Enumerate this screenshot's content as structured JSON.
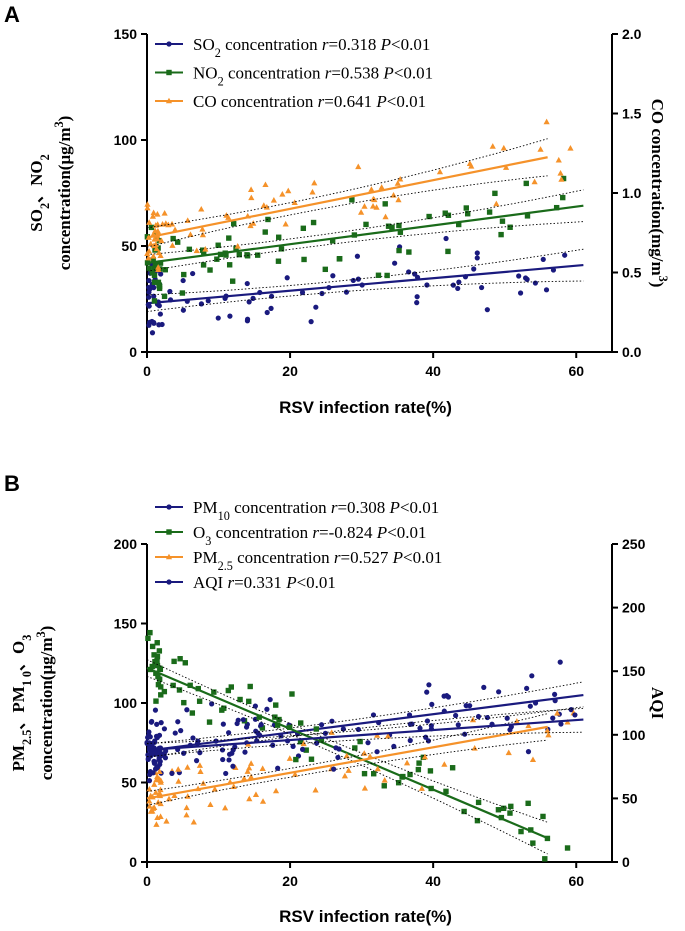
{
  "colors": {
    "navy": "#1a1a7e",
    "green": "#1a6b1a",
    "orange": "#f5922a",
    "axis": "#000000"
  },
  "chart_data": [
    {
      "panel": "A",
      "type": "scatter",
      "xlabel": "RSV infection rate(%)",
      "xlim": [
        0,
        65
      ],
      "xticks": [
        "0",
        "20",
        "40",
        "60"
      ],
      "xtick_values": [
        0,
        20,
        40,
        60
      ],
      "ylabel_left": [
        "SO",
        "2",
        "、NO",
        "2"
      ],
      "ylabel_left_line2": [
        "concentration(μg/m",
        "3",
        ")"
      ],
      "ylim_left": [
        0,
        150
      ],
      "yticks_left": [
        "0",
        "50",
        "100",
        "150"
      ],
      "ytick_values_left": [
        0,
        50,
        100,
        150
      ],
      "ylabel_right": [
        "CO concentration(mg/m",
        "3",
        ")"
      ],
      "ylim_right": [
        0,
        2.0
      ],
      "yticks_right": [
        "0.0",
        "0.5",
        "1.0",
        "1.5",
        "2.0"
      ],
      "ytick_values_right": [
        0,
        0.5,
        1.0,
        1.5,
        2.0
      ],
      "legend_pos": "top-left",
      "series": [
        {
          "name": "SO2 concentration",
          "label": [
            "SO",
            "2",
            " concentration  "
          ],
          "stat": [
            "r",
            "=0.318  ",
            "P",
            "<0.01"
          ],
          "color": "navy",
          "marker": "circle",
          "axis": "left",
          "fit": [
            23,
            41
          ],
          "band": 4.5
        },
        {
          "name": "NO2 concentration",
          "label": [
            "NO",
            "2",
            " concentration "
          ],
          "stat": [
            "r",
            "=0.538  ",
            "P",
            "<0.01"
          ],
          "color": "green",
          "marker": "square",
          "axis": "left",
          "fit": [
            42,
            69
          ],
          "band": 4.5
        },
        {
          "name": "CO concentration",
          "label": [
            "CO concentration  "
          ],
          "stat": [
            "r",
            "=0.641   ",
            "P",
            "<0.01"
          ],
          "color": "orange",
          "marker": "triangle",
          "axis": "right",
          "fit": [
            0.72,
            1.27
          ],
          "band": 0.07
        }
      ]
    },
    {
      "panel": "B",
      "type": "scatter",
      "xlabel": "RSV infection rate(%)",
      "xlim": [
        0,
        65
      ],
      "xticks": [
        "0",
        "20",
        "40",
        "60"
      ],
      "xtick_values": [
        0,
        20,
        40,
        60
      ],
      "ylabel_left": [
        "PM",
        "2.5",
        "、PM",
        "1 0",
        "、O",
        "3"
      ],
      "ylabel_left_line2": [
        "concentration(μg/m",
        "3",
        ")"
      ],
      "ylim_left": [
        0,
        200
      ],
      "yticks_left": [
        "0",
        "50",
        "100",
        "150",
        "200"
      ],
      "ytick_values_left": [
        0,
        50,
        100,
        150,
        200
      ],
      "ylabel_right": [
        "AQI"
      ],
      "ylim_right": [
        0,
        250
      ],
      "yticks_right": [
        "0",
        "50",
        "100",
        "150",
        "200",
        "250"
      ],
      "ytick_values_right": [
        0,
        50,
        100,
        150,
        200,
        250
      ],
      "legend_pos": "top-left",
      "series": [
        {
          "name": "PM10 concentration",
          "label": [
            "PM",
            "10",
            " concentration  "
          ],
          "stat": [
            "r",
            "=0.308   ",
            "P",
            "<0.01"
          ],
          "color": "navy",
          "marker": "circle",
          "axis": "left",
          "fit": [
            70,
            105
          ],
          "band": 5
        },
        {
          "name": "O3 concentration",
          "label": [
            "O",
            "3",
            " concentration  "
          ],
          "stat": [
            "r",
            "=-0.824  ",
            "P",
            "<0.01"
          ],
          "color": "green",
          "marker": "square",
          "axis": "left",
          "fit": [
            122,
            15
          ],
          "band": 6
        },
        {
          "name": "PM2.5 concentration",
          "label": [
            "PM",
            "2.5",
            " concentration  "
          ],
          "stat": [
            "r",
            "=0.527   ",
            "P",
            "<0.01"
          ],
          "color": "orange",
          "marker": "triangle",
          "axis": "left",
          "fit": [
            40,
            89
          ],
          "band": 5
        },
        {
          "name": "AQI",
          "label": [
            "AQI  "
          ],
          "stat": [
            "r",
            "=0.331   ",
            "P",
            "<0.01"
          ],
          "color": "navy",
          "marker": "circle",
          "axis": "right",
          "fit": [
            88,
            112
          ],
          "band": 6
        }
      ]
    }
  ]
}
